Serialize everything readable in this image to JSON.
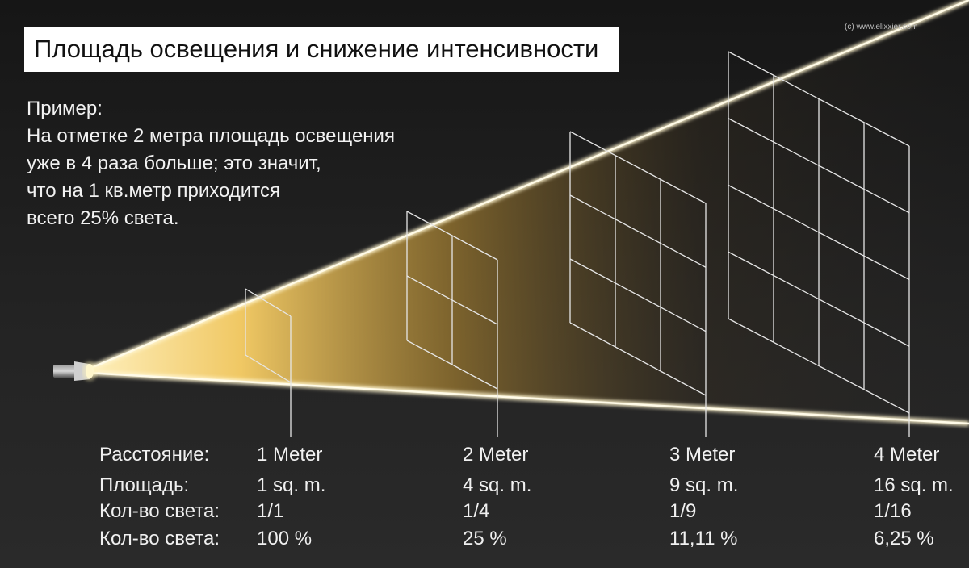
{
  "title": "Площадь освещения и снижение интенсивности",
  "credit": "(c) www.elixxier.com",
  "example": {
    "heading": "Пример:",
    "lines": [
      "На отметке 2 метра площадь освещения",
      "уже в 4 раза больше; это значит,",
      "что на 1 кв.метр приходится",
      "всего 25% света."
    ]
  },
  "row_labels": [
    "Расстояние:",
    "Площадь:",
    "Кол-во света:",
    "Кол-во света:"
  ],
  "columns": [
    {
      "distance": "1 Meter",
      "area": "1 sq. m.",
      "fraction": "1/1",
      "percent": "100 %",
      "grid": 1
    },
    {
      "distance": "2 Meter",
      "area": "4 sq. m.",
      "fraction": "1/4",
      "percent": "25 %",
      "grid": 2
    },
    {
      "distance": "3 Meter",
      "area": "9 sq. m.",
      "fraction": "1/9",
      "percent": "11,11 %",
      "grid": 3
    },
    {
      "distance": "4 Meter",
      "area": "16 sq. m.",
      "fraction": "1/16",
      "percent": "6,25 %",
      "grid": 4
    }
  ],
  "colors": {
    "background": "#1c1c1c",
    "beam_light": "#f6d98a",
    "beam_edge": "#fff4c8",
    "grid_lines": "#e6e6e6",
    "text": "#f0f0f0"
  }
}
